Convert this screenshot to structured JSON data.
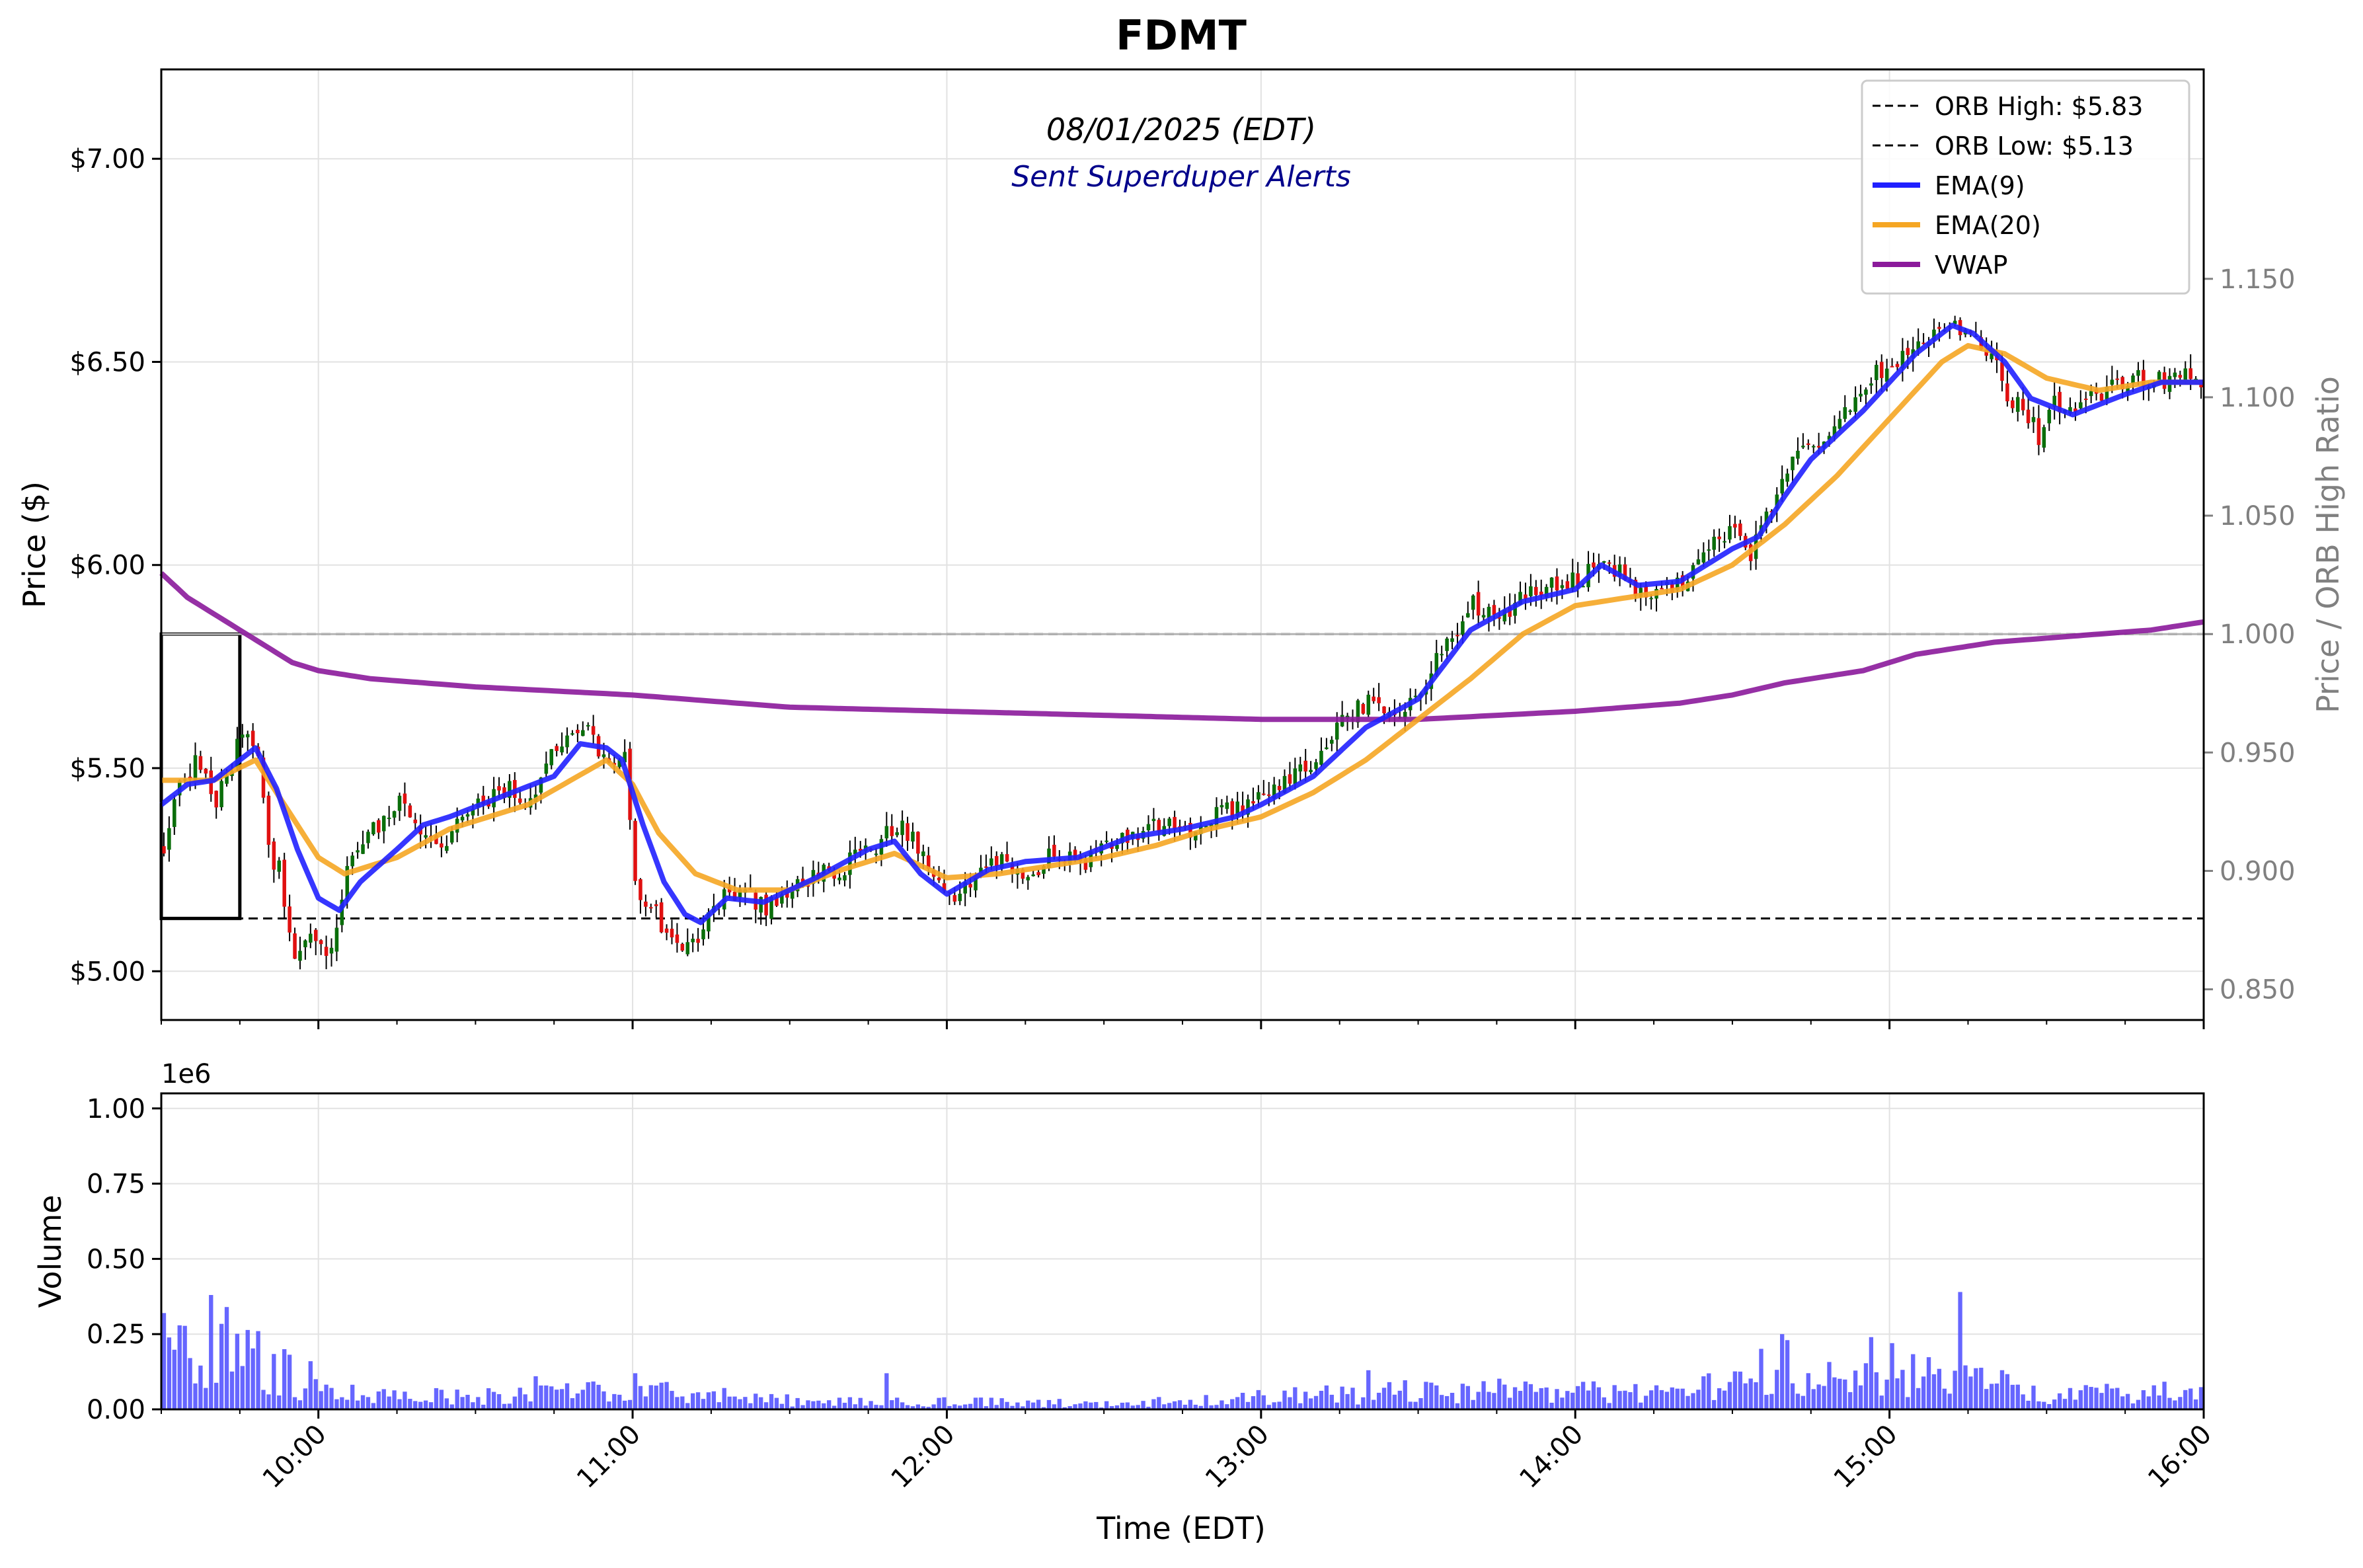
{
  "chart_data": {
    "type": "candlestick",
    "title": "FDMT",
    "date_label": "08/01/2025 (EDT)",
    "alert_label": "Sent Superduper Alerts",
    "xlabel": "Time (EDT)",
    "x_ticks": [
      "10:00",
      "11:00",
      "12:00",
      "13:00",
      "14:00",
      "15:00",
      "16:00"
    ],
    "x_range": [
      "09:30",
      "16:00"
    ],
    "price_panel": {
      "ylabel": "Price ($)",
      "ylim": [
        4.88,
        7.22
      ],
      "y_ticks": [
        5.0,
        5.5,
        6.0,
        6.5,
        7.0
      ],
      "y_tick_labels": [
        "$5.00",
        "$5.50",
        "$6.00",
        "$6.50",
        "$7.00"
      ],
      "ylabel_right": "Price / ORB High Ratio",
      "y2_ticks": [
        0.85,
        0.9,
        0.95,
        1.0,
        1.05,
        1.1,
        1.15
      ],
      "y2_tick_labels": [
        "0.850",
        "0.900",
        "0.950",
        "1.000",
        "1.050",
        "1.100",
        "1.150"
      ],
      "ratio_reference": 1.0,
      "orb_high": 5.83,
      "orb_low": 5.13,
      "orb_window": [
        "09:30",
        "09:45"
      ],
      "grid": true,
      "legend_position": "top-right",
      "legend": [
        {
          "label": "ORB High: $5.83",
          "style": "dashed",
          "color": "#000000"
        },
        {
          "label": "ORB Low: $5.13",
          "style": "dashed",
          "color": "#000000"
        },
        {
          "label": "EMA(9)",
          "style": "solid",
          "color": "#2020ff"
        },
        {
          "label": "EMA(20)",
          "style": "solid",
          "color": "#f5a623"
        },
        {
          "label": "VWAP",
          "style": "solid",
          "color": "#8b1a9b"
        }
      ],
      "close_anchors": [
        [
          "09:30",
          5.3
        ],
        [
          "09:33",
          5.45
        ],
        [
          "09:36",
          5.52
        ],
        [
          "09:40",
          5.42
        ],
        [
          "09:45",
          5.58
        ],
        [
          "09:48",
          5.55
        ],
        [
          "09:50",
          5.3
        ],
        [
          "09:52",
          5.25
        ],
        [
          "09:55",
          5.05
        ],
        [
          "09:58",
          5.1
        ],
        [
          "10:02",
          5.05
        ],
        [
          "10:05",
          5.25
        ],
        [
          "10:10",
          5.35
        ],
        [
          "10:15",
          5.42
        ],
        [
          "10:18",
          5.38
        ],
        [
          "10:22",
          5.3
        ],
        [
          "10:28",
          5.4
        ],
        [
          "10:35",
          5.45
        ],
        [
          "10:40",
          5.42
        ],
        [
          "10:45",
          5.55
        ],
        [
          "10:50",
          5.6
        ],
        [
          "10:55",
          5.52
        ],
        [
          "10:58",
          5.55
        ],
        [
          "11:00",
          5.2
        ],
        [
          "11:05",
          5.12
        ],
        [
          "11:10",
          5.06
        ],
        [
          "11:12",
          5.05
        ],
        [
          "11:15",
          5.18
        ],
        [
          "11:20",
          5.2
        ],
        [
          "11:25",
          5.16
        ],
        [
          "11:32",
          5.22
        ],
        [
          "11:40",
          5.26
        ],
        [
          "11:45",
          5.3
        ],
        [
          "11:50",
          5.36
        ],
        [
          "11:55",
          5.3
        ],
        [
          "12:00",
          5.18
        ],
        [
          "12:05",
          5.22
        ],
        [
          "12:10",
          5.28
        ],
        [
          "12:15",
          5.22
        ],
        [
          "12:20",
          5.3
        ],
        [
          "12:25",
          5.26
        ],
        [
          "12:30",
          5.3
        ],
        [
          "12:35",
          5.34
        ],
        [
          "12:40",
          5.36
        ],
        [
          "12:45",
          5.34
        ],
        [
          "12:50",
          5.38
        ],
        [
          "12:55",
          5.4
        ],
        [
          "13:00",
          5.42
        ],
        [
          "13:05",
          5.48
        ],
        [
          "13:10",
          5.52
        ],
        [
          "13:15",
          5.62
        ],
        [
          "13:20",
          5.66
        ],
        [
          "13:25",
          5.64
        ],
        [
          "13:30",
          5.68
        ],
        [
          "13:35",
          5.82
        ],
        [
          "13:40",
          5.9
        ],
        [
          "13:45",
          5.88
        ],
        [
          "13:50",
          5.92
        ],
        [
          "13:55",
          5.95
        ],
        [
          "14:00",
          5.96
        ],
        [
          "14:05",
          6.02
        ],
        [
          "14:10",
          5.95
        ],
        [
          "14:15",
          5.94
        ],
        [
          "14:20",
          5.96
        ],
        [
          "14:25",
          6.05
        ],
        [
          "14:30",
          6.08
        ],
        [
          "14:33",
          6.02
        ],
        [
          "14:37",
          6.15
        ],
        [
          "14:40",
          6.25
        ],
        [
          "14:45",
          6.3
        ],
        [
          "14:50",
          6.35
        ],
        [
          "14:55",
          6.45
        ],
        [
          "15:00",
          6.5
        ],
        [
          "15:05",
          6.55
        ],
        [
          "15:10",
          6.6
        ],
        [
          "15:13",
          6.58
        ],
        [
          "15:16",
          6.55
        ],
        [
          "15:20",
          6.5
        ],
        [
          "15:22",
          6.42
        ],
        [
          "15:25",
          6.38
        ],
        [
          "15:28",
          6.32
        ],
        [
          "15:30",
          6.4
        ],
        [
          "15:35",
          6.38
        ],
        [
          "15:40",
          6.42
        ],
        [
          "15:45",
          6.46
        ],
        [
          "15:50",
          6.45
        ],
        [
          "15:55",
          6.47
        ],
        [
          "16:00",
          6.45
        ]
      ],
      "ema9_anchors": [
        [
          "09:30",
          5.41
        ],
        [
          "09:35",
          5.46
        ],
        [
          "09:40",
          5.47
        ],
        [
          "09:45",
          5.52
        ],
        [
          "09:48",
          5.55
        ],
        [
          "09:52",
          5.45
        ],
        [
          "09:56",
          5.3
        ],
        [
          "10:00",
          5.18
        ],
        [
          "10:04",
          5.15
        ],
        [
          "10:08",
          5.22
        ],
        [
          "10:15",
          5.3
        ],
        [
          "10:20",
          5.36
        ],
        [
          "10:25",
          5.38
        ],
        [
          "10:35",
          5.43
        ],
        [
          "10:45",
          5.48
        ],
        [
          "10:50",
          5.56
        ],
        [
          "10:55",
          5.55
        ],
        [
          "10:58",
          5.52
        ],
        [
          "11:02",
          5.36
        ],
        [
          "11:06",
          5.22
        ],
        [
          "11:10",
          5.14
        ],
        [
          "11:13",
          5.12
        ],
        [
          "11:18",
          5.18
        ],
        [
          "11:25",
          5.17
        ],
        [
          "11:35",
          5.23
        ],
        [
          "11:45",
          5.3
        ],
        [
          "11:50",
          5.32
        ],
        [
          "11:55",
          5.24
        ],
        [
          "12:00",
          5.19
        ],
        [
          "12:08",
          5.25
        ],
        [
          "12:15",
          5.27
        ],
        [
          "12:25",
          5.28
        ],
        [
          "12:35",
          5.33
        ],
        [
          "12:45",
          5.35
        ],
        [
          "12:55",
          5.38
        ],
        [
          "13:00",
          5.41
        ],
        [
          "13:10",
          5.48
        ],
        [
          "13:20",
          5.6
        ],
        [
          "13:30",
          5.67
        ],
        [
          "13:40",
          5.84
        ],
        [
          "13:50",
          5.91
        ],
        [
          "14:00",
          5.94
        ],
        [
          "14:05",
          6.0
        ],
        [
          "14:12",
          5.95
        ],
        [
          "14:20",
          5.96
        ],
        [
          "14:30",
          6.04
        ],
        [
          "14:35",
          6.07
        ],
        [
          "14:40",
          6.17
        ],
        [
          "14:45",
          6.26
        ],
        [
          "14:55",
          6.38
        ],
        [
          "15:00",
          6.45
        ],
        [
          "15:05",
          6.52
        ],
        [
          "15:12",
          6.59
        ],
        [
          "15:16",
          6.57
        ],
        [
          "15:22",
          6.5
        ],
        [
          "15:27",
          6.41
        ],
        [
          "15:35",
          6.37
        ],
        [
          "15:45",
          6.42
        ],
        [
          "15:52",
          6.45
        ],
        [
          "16:00",
          6.45
        ]
      ],
      "ema20_anchors": [
        [
          "09:30",
          5.47
        ],
        [
          "09:40",
          5.47
        ],
        [
          "09:48",
          5.52
        ],
        [
          "09:55",
          5.38
        ],
        [
          "10:00",
          5.28
        ],
        [
          "10:05",
          5.24
        ],
        [
          "10:15",
          5.28
        ],
        [
          "10:25",
          5.35
        ],
        [
          "10:40",
          5.41
        ],
        [
          "10:55",
          5.52
        ],
        [
          "11:00",
          5.46
        ],
        [
          "11:05",
          5.34
        ],
        [
          "11:12",
          5.24
        ],
        [
          "11:20",
          5.2
        ],
        [
          "11:30",
          5.2
        ],
        [
          "11:40",
          5.25
        ],
        [
          "11:50",
          5.29
        ],
        [
          "12:00",
          5.23
        ],
        [
          "12:10",
          5.24
        ],
        [
          "12:20",
          5.26
        ],
        [
          "12:30",
          5.28
        ],
        [
          "12:40",
          5.31
        ],
        [
          "12:50",
          5.35
        ],
        [
          "13:00",
          5.38
        ],
        [
          "13:10",
          5.44
        ],
        [
          "13:20",
          5.52
        ],
        [
          "13:30",
          5.62
        ],
        [
          "13:40",
          5.72
        ],
        [
          "13:50",
          5.83
        ],
        [
          "14:00",
          5.9
        ],
        [
          "14:10",
          5.92
        ],
        [
          "14:20",
          5.94
        ],
        [
          "14:30",
          6.0
        ],
        [
          "14:40",
          6.1
        ],
        [
          "14:50",
          6.22
        ],
        [
          "15:00",
          6.36
        ],
        [
          "15:10",
          6.5
        ],
        [
          "15:15",
          6.54
        ],
        [
          "15:22",
          6.52
        ],
        [
          "15:30",
          6.46
        ],
        [
          "15:40",
          6.43
        ],
        [
          "15:50",
          6.45
        ],
        [
          "16:00",
          6.45
        ]
      ],
      "vwap_anchors": [
        [
          "09:30",
          5.98
        ],
        [
          "09:35",
          5.92
        ],
        [
          "09:40",
          5.88
        ],
        [
          "09:45",
          5.84
        ],
        [
          "09:50",
          5.8
        ],
        [
          "09:55",
          5.76
        ],
        [
          "10:00",
          5.74
        ],
        [
          "10:10",
          5.72
        ],
        [
          "10:30",
          5.7
        ],
        [
          "11:00",
          5.68
        ],
        [
          "11:30",
          5.65
        ],
        [
          "12:00",
          5.64
        ],
        [
          "12:30",
          5.63
        ],
        [
          "13:00",
          5.62
        ],
        [
          "13:30",
          5.62
        ],
        [
          "13:45",
          5.63
        ],
        [
          "14:00",
          5.64
        ],
        [
          "14:20",
          5.66
        ],
        [
          "14:30",
          5.68
        ],
        [
          "14:40",
          5.71
        ],
        [
          "14:55",
          5.74
        ],
        [
          "15:05",
          5.78
        ],
        [
          "15:20",
          5.81
        ],
        [
          "15:40",
          5.83
        ],
        [
          "15:50",
          5.84
        ],
        [
          "16:00",
          5.86
        ]
      ]
    },
    "volume_panel": {
      "ylabel": "Volume",
      "scale_label": "1e6",
      "ylim": [
        0,
        1.05
      ],
      "y_ticks": [
        0,
        0.25,
        0.5,
        0.75,
        1.0
      ],
      "y_tick_labels": [
        "0.00",
        "0.25",
        "0.50",
        "0.75",
        "1.00"
      ],
      "unit": "millions of shares",
      "color": "#5555ff",
      "level_anchors": [
        [
          "09:30",
          0.18
        ],
        [
          "09:40",
          0.2
        ],
        [
          "09:48",
          0.16
        ],
        [
          "09:55",
          0.1
        ],
        [
          "10:00",
          0.06
        ],
        [
          "10:30",
          0.04
        ],
        [
          "11:00",
          0.06
        ],
        [
          "11:30",
          0.03
        ],
        [
          "12:00",
          0.025
        ],
        [
          "12:30",
          0.02
        ],
        [
          "13:00",
          0.04
        ],
        [
          "13:30",
          0.06
        ],
        [
          "14:00",
          0.06
        ],
        [
          "14:20",
          0.05
        ],
        [
          "14:35",
          0.12
        ],
        [
          "14:50",
          0.09
        ],
        [
          "15:00",
          0.13
        ],
        [
          "15:15",
          0.1
        ],
        [
          "15:30",
          0.05
        ],
        [
          "16:00",
          0.06
        ]
      ],
      "spikes": [
        [
          "09:30",
          0.32
        ],
        [
          "09:39",
          0.38
        ],
        [
          "09:42",
          0.34
        ],
        [
          "09:48",
          0.26
        ],
        [
          "09:53",
          0.2
        ],
        [
          "09:58",
          0.16
        ],
        [
          "10:41",
          0.11
        ],
        [
          "11:00",
          0.12
        ],
        [
          "11:48",
          0.12
        ],
        [
          "13:20",
          0.13
        ],
        [
          "14:39",
          0.25
        ],
        [
          "14:40",
          0.23
        ],
        [
          "14:56",
          0.24
        ],
        [
          "15:00",
          0.22
        ],
        [
          "15:13",
          0.39
        ]
      ]
    }
  }
}
